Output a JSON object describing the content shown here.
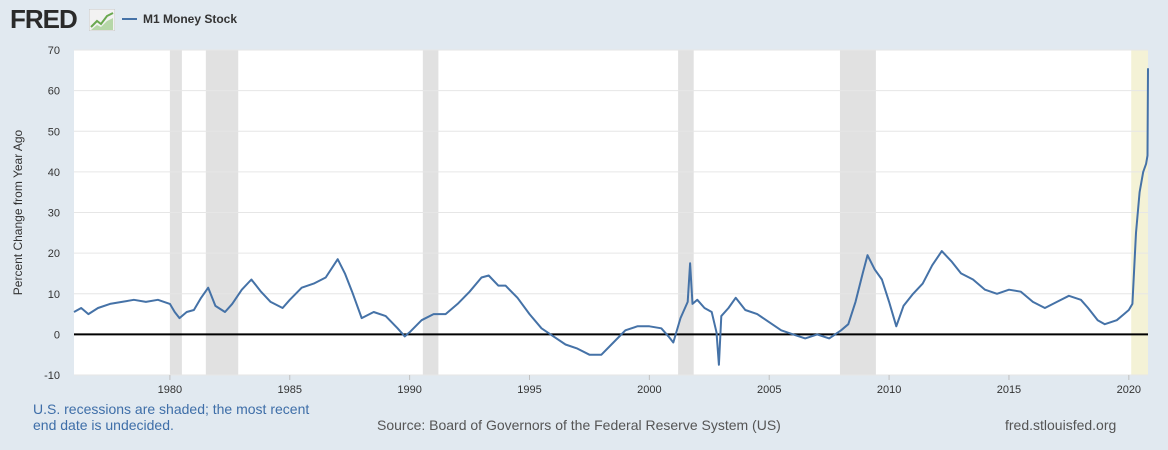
{
  "header": {
    "logo_text": "FRED",
    "logo_mark_icon": "fred-chart-icon",
    "legend_label": "M1 Money Stock"
  },
  "footer": {
    "recession_note": "U.S. recessions are shaded; the most recent end date is undecided.",
    "source": "Source: Board of Governors of the Federal Reserve System (US)",
    "site": "fred.stlouisfed.org"
  },
  "colors": {
    "page_bg": "#e1e9f0",
    "plot_bg": "#ffffff",
    "series": "#4572a7",
    "recession": "#e1e1e1",
    "recession_undecided": "#f4f2d6",
    "grid": "#e6e6e6",
    "zero_line": "#000000"
  },
  "chart_data": {
    "type": "line",
    "title": "",
    "ylabel": "Percent Change from Year Ago",
    "xlabel": "",
    "xlim": [
      1976.0,
      2020.8
    ],
    "ylim": [
      -10,
      70
    ],
    "yticks": [
      -10,
      0,
      10,
      20,
      30,
      40,
      50,
      60,
      70
    ],
    "xticks": [
      1980,
      1985,
      1990,
      1995,
      2000,
      2005,
      2010,
      2015,
      2020
    ],
    "grid": "horizontal",
    "zero_line": true,
    "recessions": [
      {
        "start": 1980.0,
        "end": 1980.5
      },
      {
        "start": 1981.5,
        "end": 1982.85
      },
      {
        "start": 1990.55,
        "end": 1991.2
      },
      {
        "start": 2001.2,
        "end": 2001.85
      },
      {
        "start": 2007.95,
        "end": 2009.45
      }
    ],
    "recession_undecided": {
      "start": 2020.1,
      "end": 2020.8
    },
    "series": [
      {
        "name": "M1 Money Stock",
        "x": [
          1976.0,
          1976.3,
          1976.6,
          1977.0,
          1977.5,
          1978.0,
          1978.5,
          1979.0,
          1979.5,
          1980.0,
          1980.2,
          1980.4,
          1980.7,
          1981.0,
          1981.3,
          1981.6,
          1981.9,
          1982.3,
          1982.6,
          1983.0,
          1983.4,
          1983.8,
          1984.2,
          1984.7,
          1985.0,
          1985.5,
          1986.0,
          1986.5,
          1987.0,
          1987.3,
          1987.6,
          1988.0,
          1988.5,
          1989.0,
          1989.5,
          1989.8,
          1990.0,
          1990.5,
          1991.0,
          1991.5,
          1992.0,
          1992.5,
          1993.0,
          1993.3,
          1993.7,
          1994.0,
          1994.5,
          1995.0,
          1995.5,
          1996.0,
          1996.5,
          1997.0,
          1997.5,
          1998.0,
          1998.5,
          1999.0,
          1999.5,
          2000.0,
          2000.5,
          2000.8,
          2001.0,
          2001.3,
          2001.6,
          2001.7,
          2001.8,
          2002.0,
          2002.3,
          2002.6,
          2002.8,
          2002.9,
          2003.0,
          2003.3,
          2003.6,
          2004.0,
          2004.5,
          2005.0,
          2005.5,
          2006.0,
          2006.5,
          2007.0,
          2007.5,
          2008.0,
          2008.3,
          2008.6,
          2008.9,
          2009.1,
          2009.4,
          2009.7,
          2010.0,
          2010.3,
          2010.6,
          2011.0,
          2011.4,
          2011.8,
          2012.2,
          2012.6,
          2013.0,
          2013.5,
          2014.0,
          2014.5,
          2015.0,
          2015.5,
          2016.0,
          2016.5,
          2017.0,
          2017.5,
          2018.0,
          2018.3,
          2018.7,
          2019.0,
          2019.5,
          2019.8,
          2020.0,
          2020.15,
          2020.3,
          2020.45,
          2020.6,
          2020.72,
          2020.78,
          2020.8
        ],
        "y": [
          5.5,
          6.5,
          5.0,
          6.5,
          7.5,
          8.0,
          8.5,
          8.0,
          8.5,
          7.5,
          5.5,
          4.0,
          5.5,
          6.0,
          9.0,
          11.5,
          7.0,
          5.5,
          7.5,
          11.0,
          13.5,
          10.5,
          8.0,
          6.5,
          8.5,
          11.5,
          12.5,
          14.0,
          18.5,
          15.0,
          10.5,
          4.0,
          5.5,
          4.5,
          1.5,
          -0.5,
          0.5,
          3.5,
          5.0,
          5.0,
          7.5,
          10.5,
          14.0,
          14.5,
          12.0,
          12.0,
          9.0,
          5.0,
          1.5,
          -0.5,
          -2.5,
          -3.5,
          -5.0,
          -5.0,
          -2.0,
          1.0,
          2.0,
          2.0,
          1.5,
          -0.5,
          -2.0,
          4.0,
          8.0,
          17.5,
          7.5,
          8.5,
          6.5,
          5.5,
          0.5,
          -7.5,
          4.5,
          6.5,
          9.0,
          6.0,
          5.0,
          3.0,
          1.0,
          0.0,
          -1.0,
          0.0,
          -1.0,
          1.0,
          2.5,
          8.0,
          15.0,
          19.5,
          16.0,
          13.5,
          8.0,
          2.0,
          7.0,
          10.0,
          12.5,
          17.0,
          20.5,
          18.0,
          15.0,
          13.5,
          11.0,
          10.0,
          11.0,
          10.5,
          8.0,
          6.5,
          8.0,
          9.5,
          8.5,
          6.5,
          3.5,
          2.5,
          3.5,
          5.0,
          6.0,
          7.5,
          25.0,
          35.0,
          40.0,
          42.0,
          44.0,
          65.5
        ]
      }
    ]
  }
}
